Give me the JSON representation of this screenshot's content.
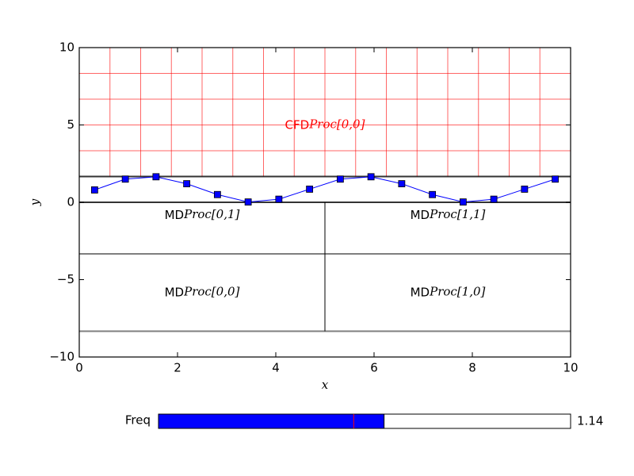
{
  "chart_data": {
    "type": "line",
    "xlabel": "x",
    "ylabel": "y",
    "xlim": [
      0,
      10
    ],
    "ylim": [
      -10,
      10
    ],
    "xticks": [
      0,
      2,
      4,
      6,
      8,
      10
    ],
    "yticks": [
      {
        "value": -10,
        "label": "−10"
      },
      {
        "value": -5,
        "label": "−5"
      },
      0,
      5,
      10
    ],
    "series": [
      {
        "color": "#0000ff",
        "x": [
          0.3125,
          0.9375,
          1.5625,
          2.1875,
          2.8125,
          3.4375,
          4.0625,
          4.6875,
          5.3125,
          5.9375,
          6.5625,
          7.1875,
          7.8125,
          8.4375,
          9.0625,
          9.6875
        ],
        "values": [
          0.8,
          1.5,
          1.65,
          1.2,
          0.5,
          0.02,
          0.2,
          0.85,
          1.5,
          1.65,
          1.2,
          0.5,
          0.02,
          0.2,
          0.85,
          1.5
        ]
      }
    ],
    "cfd_grid": {
      "color": "#ff0000",
      "x0": 0,
      "x1": 10,
      "y0": 1.667,
      "y1": 10,
      "nx": 16,
      "ny": 5
    },
    "hlines": [
      1.667,
      0,
      -3.333,
      -8.333
    ],
    "vline": {
      "x": 5,
      "y0": -8.333,
      "y1": 0
    },
    "regions": [
      {
        "prefix": "CFD",
        "math": "Proc[0,0]",
        "color": "#ff0000",
        "x": 5,
        "y": 5
      },
      {
        "prefix": "MD",
        "math": "Proc[0,1]",
        "color": "#000000",
        "x": 2.5,
        "y": -0.833
      },
      {
        "prefix": "MD",
        "math": "Proc[1,1]",
        "color": "#000000",
        "x": 7.5,
        "y": -0.833
      },
      {
        "prefix": "MD",
        "math": "Proc[0,0]",
        "color": "#000000",
        "x": 2.5,
        "y": -5.833
      },
      {
        "prefix": "MD",
        "math": "Proc[1,0]",
        "color": "#000000",
        "x": 7.5,
        "y": -5.833
      }
    ]
  },
  "slider": {
    "label": "Freq",
    "min": 0.1,
    "max": 2,
    "value": 1.14,
    "init": 1,
    "color": "#0000ff"
  }
}
